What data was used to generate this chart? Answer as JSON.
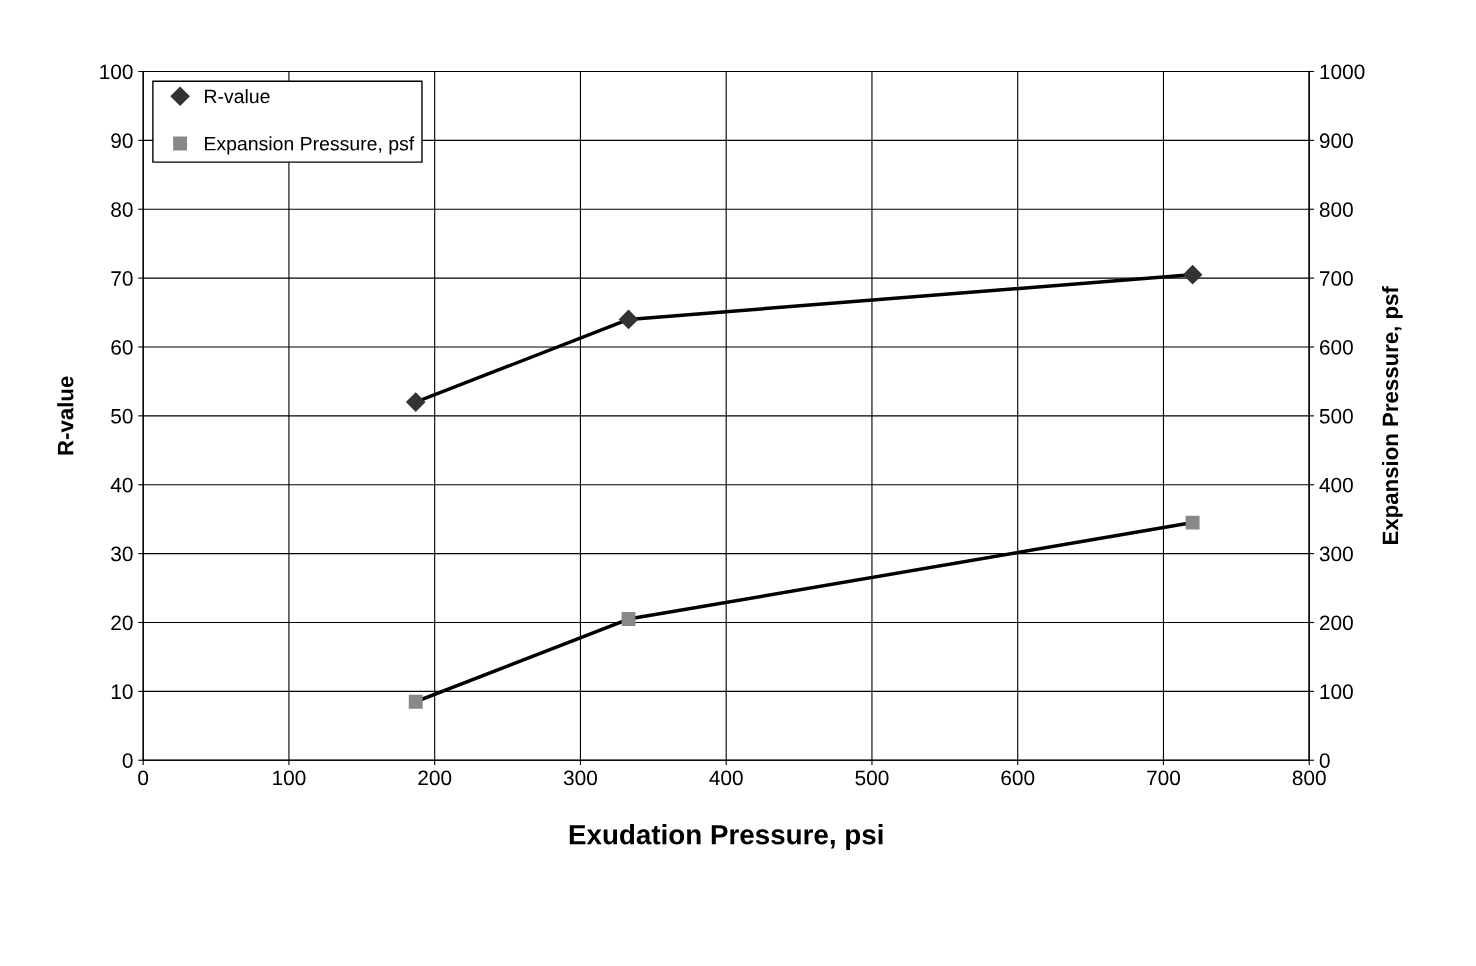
{
  "chart_data": {
    "type": "line",
    "xlabel": "Exudation Pressure, psi",
    "ylabel": "R-value",
    "y2label": "Expansion Pressure, psf",
    "x": [
      187,
      333,
      720
    ],
    "series": [
      {
        "name": "R-value",
        "color": "#333333",
        "values": [
          52,
          64,
          70.5
        ],
        "marker": "diamond"
      },
      {
        "name": "Expansion Pressure, psf",
        "color": "#888888",
        "values": [
          85,
          205,
          345
        ],
        "marker": "square",
        "axis": "y2"
      }
    ],
    "xlim": [
      0,
      800
    ],
    "xticks": [
      0,
      100,
      200,
      300,
      400,
      500,
      600,
      700,
      800
    ],
    "ylim": [
      0,
      100
    ],
    "yticks": [
      0,
      10,
      20,
      30,
      40,
      50,
      60,
      70,
      80,
      90,
      100
    ],
    "y2lim": [
      0,
      1000
    ],
    "y2ticks": [
      0,
      100,
      200,
      300,
      400,
      500,
      600,
      700,
      800,
      900,
      1000
    ],
    "grid": true,
    "legend": "top left",
    "line_style": "solid"
  }
}
